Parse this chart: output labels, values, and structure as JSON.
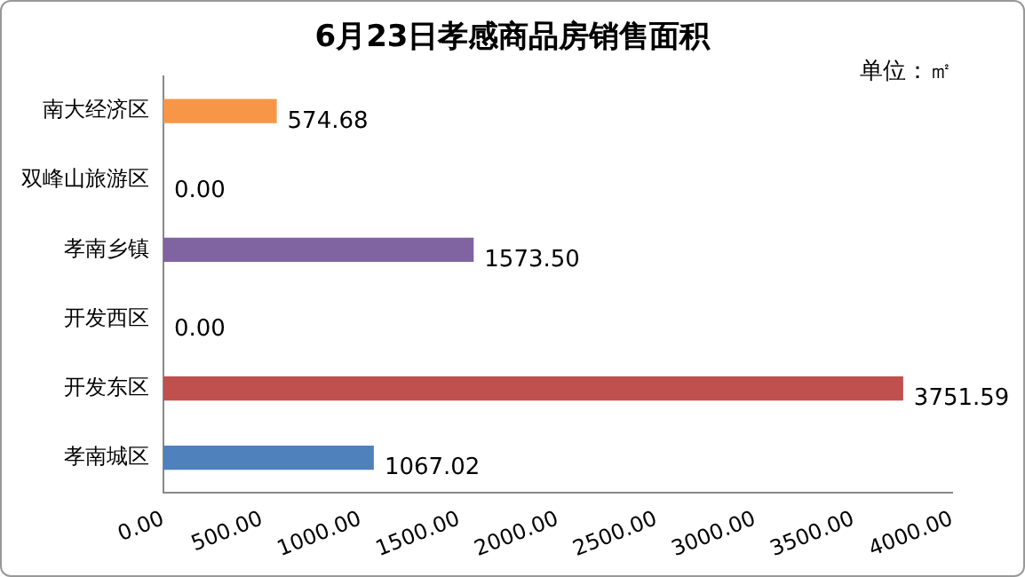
{
  "chart_data": {
    "type": "bar",
    "orientation": "horizontal",
    "title": "6月23日孝感商品房销售面积",
    "annotations": [
      "单位：㎡"
    ],
    "categories": [
      "南大经济区",
      "双峰山旅游区",
      "孝南乡镇",
      "开发西区",
      "开发东区",
      "孝南城区"
    ],
    "values": [
      574.68,
      0,
      1573.5,
      0,
      3751.59,
      1067.02
    ],
    "colors": [
      "#f79646",
      "#9bbb59",
      "#8064a2",
      "#4bacc6",
      "#c0504d",
      "#4f81bd"
    ],
    "value_labels": [
      "574.68",
      "0.00",
      "1573.50",
      "0.00",
      "3751.59",
      "1067.02"
    ],
    "xlim": [
      0,
      4000
    ],
    "xticks": [
      {
        "value": 0,
        "label": "0.00"
      },
      {
        "value": 500,
        "label": "500.00"
      },
      {
        "value": 1000,
        "label": "1000.00"
      },
      {
        "value": 1500,
        "label": "1500.00"
      },
      {
        "value": 2000,
        "label": "2000.00"
      },
      {
        "value": 2500,
        "label": "2500.00"
      },
      {
        "value": 3000,
        "label": "3000.00"
      },
      {
        "value": 3500,
        "label": "3500.00"
      },
      {
        "value": 4000,
        "label": "4000.00"
      }
    ],
    "grid": false,
    "legend": false
  }
}
